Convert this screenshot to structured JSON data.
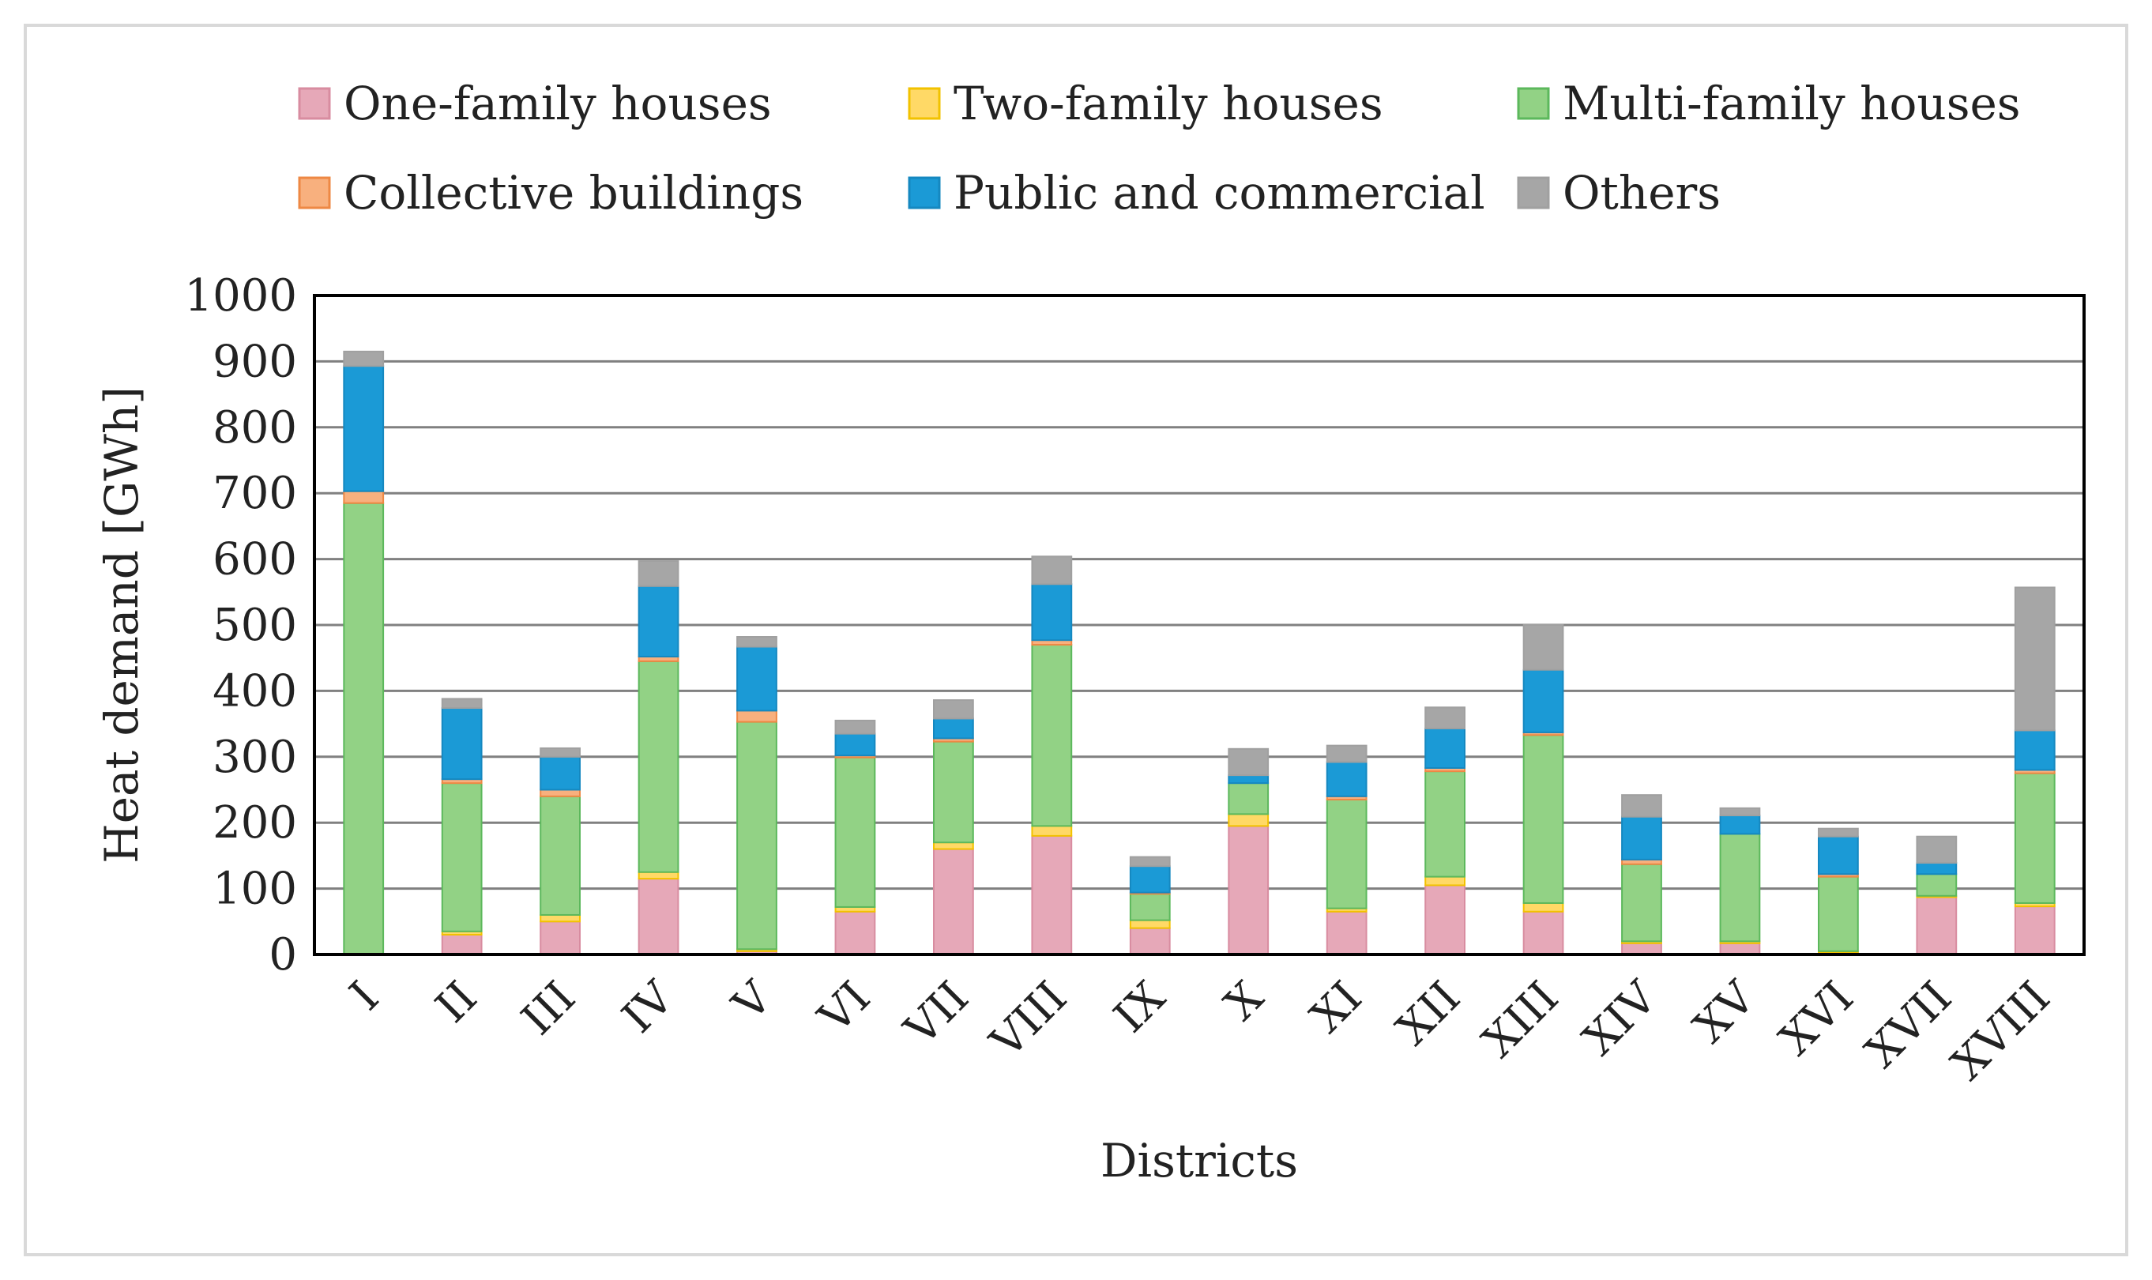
{
  "chart_data": {
    "type": "bar",
    "stacked": true,
    "title": "",
    "xlabel": "Districts",
    "ylabel": "Heat demand [GWh]",
    "ylim": [
      0,
      1000
    ],
    "yticks": [
      0,
      100,
      200,
      300,
      400,
      500,
      600,
      700,
      800,
      900,
      1000
    ],
    "grid": true,
    "legend_position": "top",
    "categories": [
      "I",
      "II",
      "III",
      "IV",
      "V",
      "VI",
      "VII",
      "VIII",
      "IX",
      "X",
      "XI",
      "XII",
      "XIII",
      "XIV",
      "XV",
      "XVI",
      "XVII",
      "XVIII"
    ],
    "series": [
      {
        "name": "One-family houses",
        "color": "#e6a8b8",
        "edge": "#d88ca0",
        "values": [
          0,
          30,
          50,
          115,
          5,
          65,
          160,
          180,
          40,
          195,
          65,
          105,
          65,
          17,
          17,
          3,
          87,
          73
        ]
      },
      {
        "name": "Two-family houses",
        "color": "#ffd966",
        "edge": "#f2c200",
        "values": [
          0,
          5,
          10,
          10,
          3,
          7,
          10,
          15,
          12,
          18,
          5,
          13,
          13,
          3,
          3,
          2,
          2,
          5
        ]
      },
      {
        "name": "Multi-family houses",
        "color": "#92d285",
        "edge": "#5cb85c",
        "values": [
          685,
          225,
          180,
          320,
          345,
          227,
          153,
          275,
          40,
          47,
          165,
          160,
          255,
          117,
          163,
          113,
          33,
          197
        ]
      },
      {
        "name": "Collective buildings",
        "color": "#f8b07e",
        "edge": "#ee8844",
        "values": [
          18,
          6,
          10,
          7,
          17,
          3,
          5,
          7,
          2,
          0,
          5,
          5,
          4,
          7,
          0,
          4,
          0,
          5
        ]
      },
      {
        "name": "Public and commercial",
        "color": "#1b9ad6",
        "edge": "#1588c0",
        "values": [
          190,
          108,
          50,
          107,
          97,
          33,
          30,
          85,
          40,
          12,
          52,
          60,
          95,
          65,
          28,
          57,
          17,
          60
        ]
      },
      {
        "name": "Others",
        "color": "#a6a6a6",
        "edge": "#a0a0a0",
        "values": [
          22,
          14,
          13,
          38,
          15,
          20,
          28,
          42,
          14,
          40,
          25,
          32,
          68,
          33,
          11,
          12,
          40,
          217
        ]
      }
    ]
  }
}
